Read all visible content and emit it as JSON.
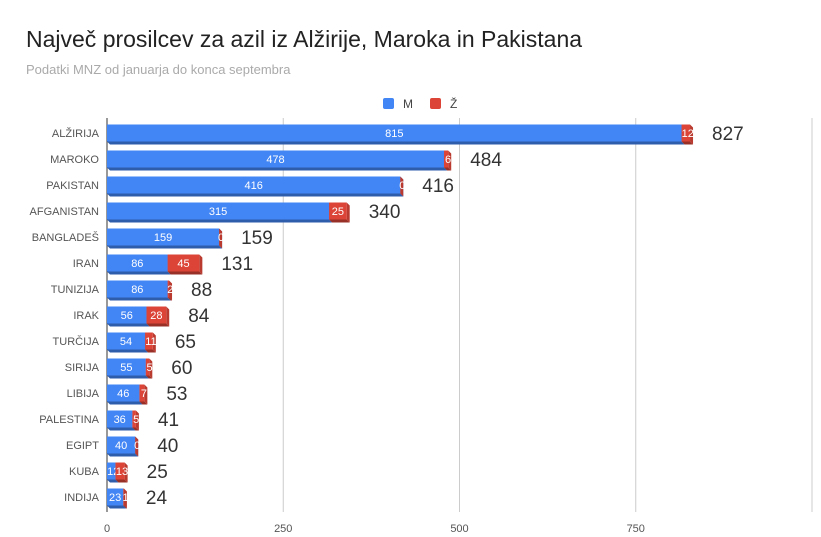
{
  "chart_data": {
    "type": "bar",
    "orientation": "horizontal",
    "stacked": true,
    "title": "Največ prosilcev za azil iz Alžirije, Maroka in Pakistana",
    "subtitle": "Podatki MNZ od januarja do konca septembra",
    "categories": [
      "ALŽIRIJA",
      "MAROKO",
      "PAKISTAN",
      "AFGANISTAN",
      "BANGLADEŠ",
      "IRAN",
      "TUNIZIJA",
      "IRAK",
      "TURČIJA",
      "SIRIJA",
      "LIBIJA",
      "PALESTINA",
      "EGIPT",
      "KUBA",
      "INDIJA"
    ],
    "series": [
      {
        "name": "M",
        "color": "#4285f4",
        "values": [
          815,
          478,
          416,
          315,
          159,
          86,
          86,
          56,
          54,
          55,
          46,
          36,
          40,
          12,
          23
        ]
      },
      {
        "name": "Ž",
        "color": "#db4437",
        "values": [
          12,
          6,
          0,
          25,
          0,
          45,
          2,
          28,
          11,
          5,
          7,
          5,
          0,
          13,
          1
        ]
      }
    ],
    "totals": [
      827,
      484,
      416,
      340,
      159,
      131,
      88,
      84,
      65,
      60,
      53,
      41,
      40,
      25,
      24
    ],
    "xlim": [
      0,
      1000
    ],
    "xticks": [
      0,
      250,
      500,
      750
    ],
    "grid": true,
    "legend": "top"
  }
}
